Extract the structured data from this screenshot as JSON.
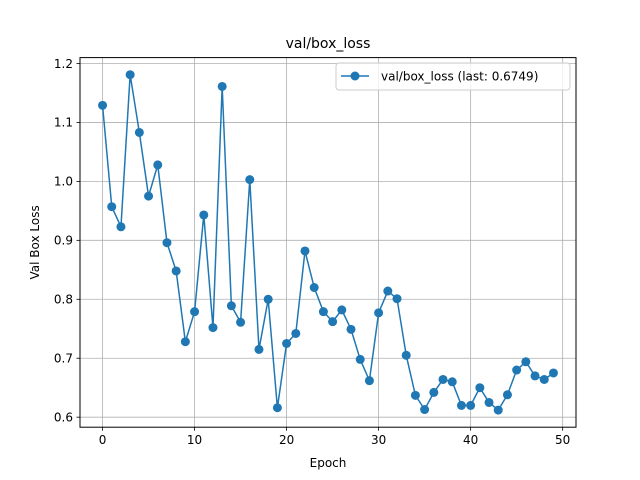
{
  "chart_data": {
    "type": "line",
    "title": "val/box_loss",
    "xlabel": "Epoch",
    "ylabel": "Val Box Loss",
    "xlim": [
      -2.45,
      51.45
    ],
    "ylim": [
      0.583,
      1.21
    ],
    "xticks": [
      0,
      10,
      20,
      30,
      40,
      50
    ],
    "yticks": [
      0.6,
      0.7,
      0.8,
      0.9,
      1.0,
      1.1,
      1.2
    ],
    "ytick_labels": [
      "0.6",
      "0.7",
      "0.8",
      "0.9",
      "1.0",
      "1.1",
      "1.2"
    ],
    "grid": true,
    "legend_position": "top-right",
    "color": "#1f77b4",
    "series": [
      {
        "name": "val/box_loss (last: 0.6749)",
        "x": [
          0,
          1,
          2,
          3,
          4,
          5,
          6,
          7,
          8,
          9,
          10,
          11,
          12,
          13,
          14,
          15,
          16,
          17,
          18,
          19,
          20,
          21,
          22,
          23,
          24,
          25,
          26,
          27,
          28,
          29,
          30,
          31,
          32,
          33,
          34,
          35,
          36,
          37,
          38,
          39,
          40,
          41,
          42,
          43,
          44,
          45,
          46,
          47,
          48,
          49
        ],
        "y": [
          1.129,
          0.957,
          0.923,
          1.181,
          1.083,
          0.975,
          1.028,
          0.896,
          0.848,
          0.728,
          0.779,
          0.943,
          0.752,
          1.161,
          0.789,
          0.761,
          1.003,
          0.715,
          0.8,
          0.616,
          0.725,
          0.742,
          0.882,
          0.82,
          0.779,
          0.762,
          0.782,
          0.749,
          0.698,
          0.662,
          0.777,
          0.814,
          0.801,
          0.705,
          0.637,
          0.613,
          0.642,
          0.664,
          0.66,
          0.62,
          0.62,
          0.65,
          0.625,
          0.612,
          0.638,
          0.68,
          0.694,
          0.67,
          0.664,
          0.675
        ]
      }
    ]
  }
}
